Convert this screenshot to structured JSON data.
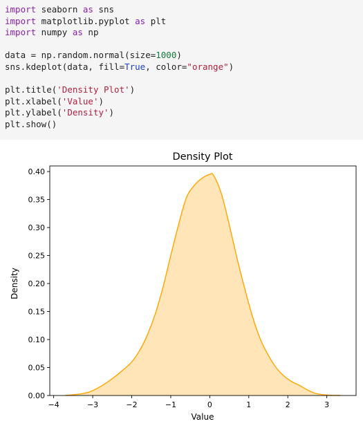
{
  "code": {
    "lines": [
      [
        {
          "t": "import",
          "c": "kw"
        },
        {
          "t": " seaborn ",
          "c": "plain"
        },
        {
          "t": "as",
          "c": "kw"
        },
        {
          "t": " sns",
          "c": "plain"
        }
      ],
      [
        {
          "t": "import",
          "c": "kw"
        },
        {
          "t": " matplotlib.pyplot ",
          "c": "plain"
        },
        {
          "t": "as",
          "c": "kw"
        },
        {
          "t": " plt",
          "c": "plain"
        }
      ],
      [
        {
          "t": "import",
          "c": "kw"
        },
        {
          "t": " numpy ",
          "c": "plain"
        },
        {
          "t": "as",
          "c": "kw"
        },
        {
          "t": " np",
          "c": "plain"
        }
      ],
      [],
      [
        {
          "t": "data = np.random.normal(size=",
          "c": "plain"
        },
        {
          "t": "1000",
          "c": "num"
        },
        {
          "t": ")",
          "c": "plain"
        }
      ],
      [
        {
          "t": "sns.kdeplot(data, fill=",
          "c": "plain"
        },
        {
          "t": "True",
          "c": "true"
        },
        {
          "t": ", color=",
          "c": "plain"
        },
        {
          "t": "\"orange\"",
          "c": "str"
        },
        {
          "t": ")",
          "c": "plain"
        }
      ],
      [],
      [
        {
          "t": "plt.title(",
          "c": "plain"
        },
        {
          "t": "'Density Plot'",
          "c": "str"
        },
        {
          "t": ")",
          "c": "plain"
        }
      ],
      [
        {
          "t": "plt.xlabel(",
          "c": "plain"
        },
        {
          "t": "'Value'",
          "c": "str"
        },
        {
          "t": ")",
          "c": "plain"
        }
      ],
      [
        {
          "t": "plt.ylabel(",
          "c": "plain"
        },
        {
          "t": "'Density'",
          "c": "str"
        },
        {
          "t": ")",
          "c": "plain"
        }
      ],
      [
        {
          "t": "plt.show()",
          "c": "plain"
        }
      ]
    ]
  },
  "chart_data": {
    "type": "area",
    "title": "Density Plot",
    "xlabel": "Value",
    "ylabel": "Density",
    "xlim": [
      -4.1,
      3.75
    ],
    "ylim": [
      0,
      0.41
    ],
    "xticks": [
      -4,
      -3,
      -2,
      -1,
      0,
      1,
      2,
      3
    ],
    "xtick_labels": [
      "−4",
      "−3",
      "−2",
      "−1",
      "0",
      "1",
      "2",
      "3"
    ],
    "yticks": [
      0.0,
      0.05,
      0.1,
      0.15,
      0.2,
      0.25,
      0.3,
      0.35,
      0.4
    ],
    "ytick_labels": [
      "0.00",
      "0.05",
      "0.10",
      "0.15",
      "0.20",
      "0.25",
      "0.30",
      "0.35",
      "0.40"
    ],
    "grid": false,
    "colors": {
      "line": "#ffa500",
      "fill": "#ffe5b8"
    },
    "series": [
      {
        "x": [
          -3.7,
          -3.4,
          -3.1,
          -2.8,
          -2.5,
          -2.2,
          -2.0,
          -1.8,
          -1.6,
          -1.4,
          -1.2,
          -1.0,
          -0.8,
          -0.6,
          -0.4,
          -0.2,
          0.0,
          0.1,
          0.3,
          0.5,
          0.7,
          0.9,
          1.1,
          1.3,
          1.5,
          1.7,
          1.9,
          2.1,
          2.3,
          2.5,
          2.7,
          2.9,
          3.1,
          3.35
        ],
        "y": [
          0.0003,
          0.002,
          0.006,
          0.016,
          0.03,
          0.047,
          0.06,
          0.08,
          0.108,
          0.145,
          0.193,
          0.25,
          0.305,
          0.353,
          0.375,
          0.388,
          0.395,
          0.393,
          0.36,
          0.305,
          0.245,
          0.19,
          0.14,
          0.1,
          0.072,
          0.05,
          0.035,
          0.025,
          0.018,
          0.01,
          0.004,
          0.0015,
          0.0005,
          0.0001
        ]
      }
    ]
  }
}
